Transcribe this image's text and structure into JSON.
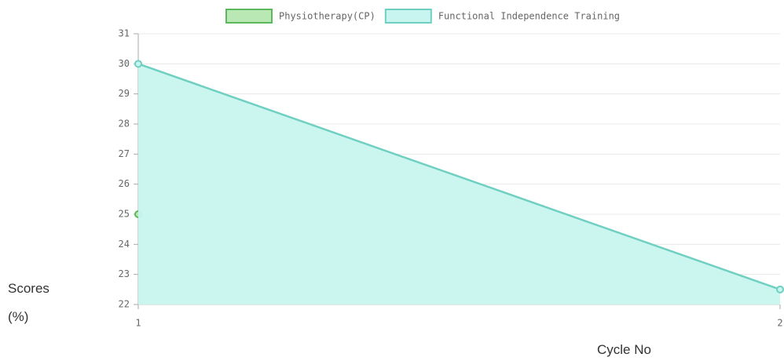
{
  "chart_data": {
    "type": "line",
    "x_label": "Cycle No",
    "y_label": "Scores (%)",
    "categories": [
      "1",
      "2"
    ],
    "series": [
      {
        "name": "Physiotherapy(CP)",
        "color": "#5cb85c",
        "fill": "#b9e8b5",
        "values": [
          25,
          null
        ]
      },
      {
        "name": "Functional Independence Training",
        "color": "#6fd0c2",
        "fill": "#c8f5ef",
        "values": [
          30,
          22.5
        ]
      }
    ],
    "ylim": [
      22,
      31
    ],
    "yticks": [
      22,
      23,
      24,
      25,
      26,
      27,
      28,
      29,
      30,
      31
    ],
    "grid": true
  }
}
